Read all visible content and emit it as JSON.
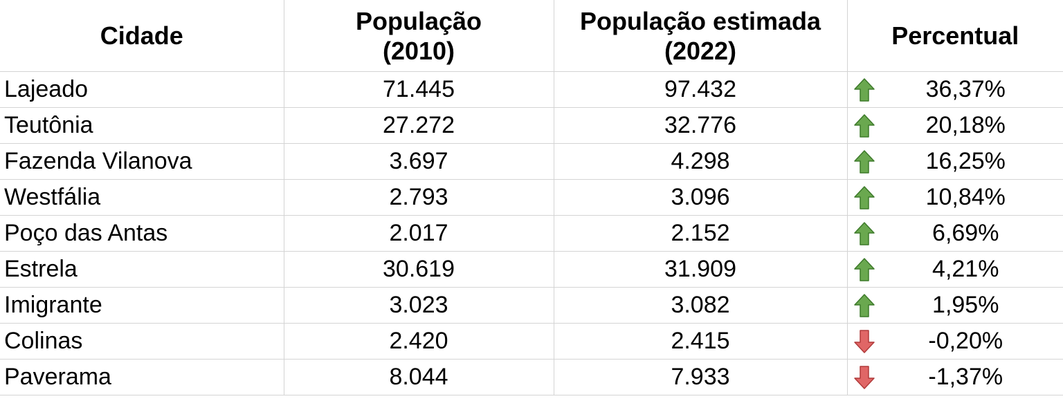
{
  "headers": {
    "city": "Cidade",
    "pop2010_line1": "População",
    "pop2010_line2": "(2010)",
    "pop2022_line1": "População estimada",
    "pop2022_line2": "(2022)",
    "percent": "Percentual"
  },
  "rows": [
    {
      "city": "Lajeado",
      "pop2010": "71.445",
      "pop2022": "97.432",
      "percent": "36,37%",
      "trend": "up"
    },
    {
      "city": "Teutônia",
      "pop2010": "27.272",
      "pop2022": "32.776",
      "percent": "20,18%",
      "trend": "up"
    },
    {
      "city": "Fazenda Vilanova",
      "pop2010": "3.697",
      "pop2022": "4.298",
      "percent": "16,25%",
      "trend": "up"
    },
    {
      "city": "Westfália",
      "pop2010": "2.793",
      "pop2022": "3.096",
      "percent": "10,84%",
      "trend": "up"
    },
    {
      "city": "Poço das Antas",
      "pop2010": "2.017",
      "pop2022": "2.152",
      "percent": "6,69%",
      "trend": "up"
    },
    {
      "city": "Estrela",
      "pop2010": "30.619",
      "pop2022": "31.909",
      "percent": "4,21%",
      "trend": "up"
    },
    {
      "city": "Imigrante",
      "pop2010": "3.023",
      "pop2022": "3.082",
      "percent": "1,95%",
      "trend": "up"
    },
    {
      "city": "Colinas",
      "pop2010": "2.420",
      "pop2022": "2.415",
      "percent": "-0,20%",
      "trend": "down"
    },
    {
      "city": "Paverama",
      "pop2010": "8.044",
      "pop2022": "7.933",
      "percent": "-1,37%",
      "trend": "down"
    }
  ],
  "colors": {
    "up_arrow": "#6aa84f",
    "down_arrow": "#e06666",
    "grid": "#d4d4d4"
  }
}
